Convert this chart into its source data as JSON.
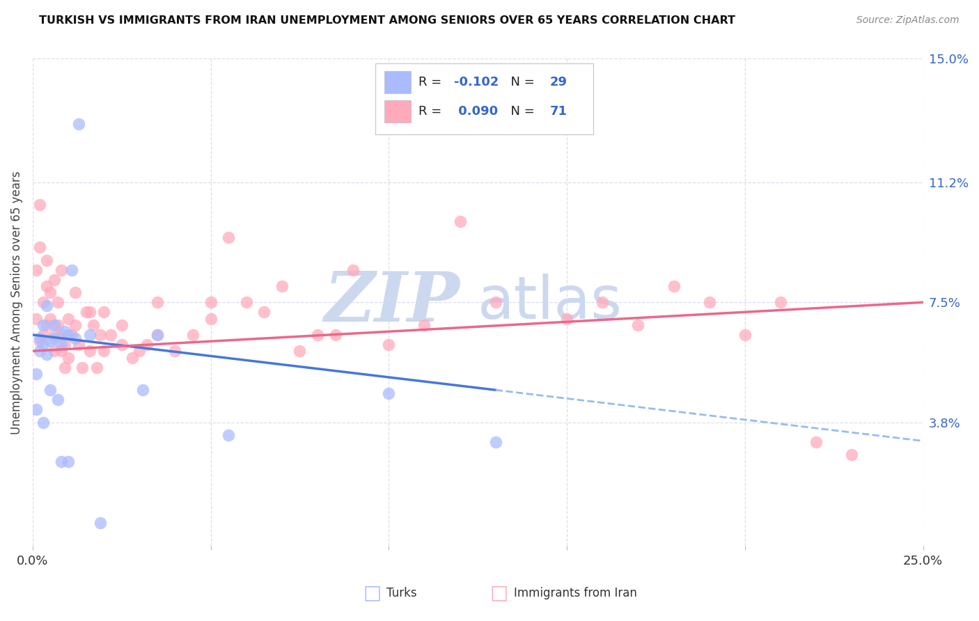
{
  "title": "TURKISH VS IMMIGRANTS FROM IRAN UNEMPLOYMENT AMONG SENIORS OVER 65 YEARS CORRELATION CHART",
  "source": "Source: ZipAtlas.com",
  "ylabel": "Unemployment Among Seniors over 65 years",
  "xlim": [
    0.0,
    0.25
  ],
  "ylim": [
    0.0,
    0.15
  ],
  "yticks": [
    0.038,
    0.075,
    0.112,
    0.15
  ],
  "ytick_labels": [
    "3.8%",
    "7.5%",
    "11.2%",
    "15.0%"
  ],
  "xticks": [
    0.0,
    0.05,
    0.1,
    0.15,
    0.2,
    0.25
  ],
  "xtick_labels": [
    "0.0%",
    "",
    "",
    "",
    "",
    "25.0%"
  ],
  "turks_color": "#aabbff",
  "iran_color": "#ffaabb",
  "turks_line_color": "#4477dd",
  "iran_line_color": "#ee6688",
  "turks_dash_color": "#99bbee",
  "turks_R": -0.102,
  "turks_N": 29,
  "iran_R": 0.09,
  "iran_N": 71,
  "legend_text_color": "#222222",
  "legend_value_color": "#3366cc",
  "background_color": "#ffffff",
  "grid_color": "#ddddee",
  "watermark_zip": "ZIP",
  "watermark_atlas": "atlas",
  "watermark_color": "#ccd8ee",
  "turks_x": [
    0.001,
    0.001,
    0.002,
    0.002,
    0.003,
    0.003,
    0.004,
    0.004,
    0.005,
    0.006,
    0.006,
    0.007,
    0.008,
    0.009,
    0.01,
    0.011,
    0.012,
    0.013,
    0.016,
    0.019,
    0.031,
    0.035,
    0.055,
    0.1,
    0.13,
    0.003,
    0.005,
    0.008,
    0.01
  ],
  "turks_y": [
    0.053,
    0.042,
    0.06,
    0.064,
    0.062,
    0.068,
    0.059,
    0.074,
    0.063,
    0.064,
    0.068,
    0.045,
    0.026,
    0.066,
    0.026,
    0.085,
    0.064,
    0.13,
    0.065,
    0.007,
    0.048,
    0.065,
    0.034,
    0.047,
    0.032,
    0.038,
    0.048,
    0.062,
    0.065
  ],
  "iran_x": [
    0.001,
    0.001,
    0.002,
    0.002,
    0.003,
    0.003,
    0.004,
    0.004,
    0.005,
    0.005,
    0.006,
    0.006,
    0.007,
    0.007,
    0.008,
    0.008,
    0.009,
    0.009,
    0.01,
    0.01,
    0.011,
    0.012,
    0.013,
    0.014,
    0.015,
    0.016,
    0.017,
    0.018,
    0.019,
    0.02,
    0.022,
    0.025,
    0.028,
    0.03,
    0.032,
    0.035,
    0.04,
    0.045,
    0.05,
    0.055,
    0.06,
    0.065,
    0.07,
    0.075,
    0.08,
    0.085,
    0.09,
    0.1,
    0.11,
    0.12,
    0.13,
    0.14,
    0.15,
    0.16,
    0.17,
    0.18,
    0.19,
    0.2,
    0.21,
    0.22,
    0.23,
    0.002,
    0.004,
    0.006,
    0.008,
    0.012,
    0.016,
    0.02,
    0.025,
    0.035,
    0.05
  ],
  "iran_y": [
    0.07,
    0.085,
    0.063,
    0.092,
    0.065,
    0.075,
    0.068,
    0.08,
    0.07,
    0.078,
    0.06,
    0.065,
    0.068,
    0.075,
    0.06,
    0.065,
    0.055,
    0.062,
    0.058,
    0.07,
    0.065,
    0.068,
    0.062,
    0.055,
    0.072,
    0.06,
    0.068,
    0.055,
    0.065,
    0.06,
    0.065,
    0.068,
    0.058,
    0.06,
    0.062,
    0.075,
    0.06,
    0.065,
    0.07,
    0.095,
    0.075,
    0.072,
    0.08,
    0.06,
    0.065,
    0.065,
    0.085,
    0.062,
    0.068,
    0.1,
    0.075,
    0.14,
    0.07,
    0.075,
    0.068,
    0.08,
    0.075,
    0.065,
    0.075,
    0.032,
    0.028,
    0.105,
    0.088,
    0.082,
    0.085,
    0.078,
    0.072,
    0.072,
    0.062,
    0.065,
    0.075
  ]
}
